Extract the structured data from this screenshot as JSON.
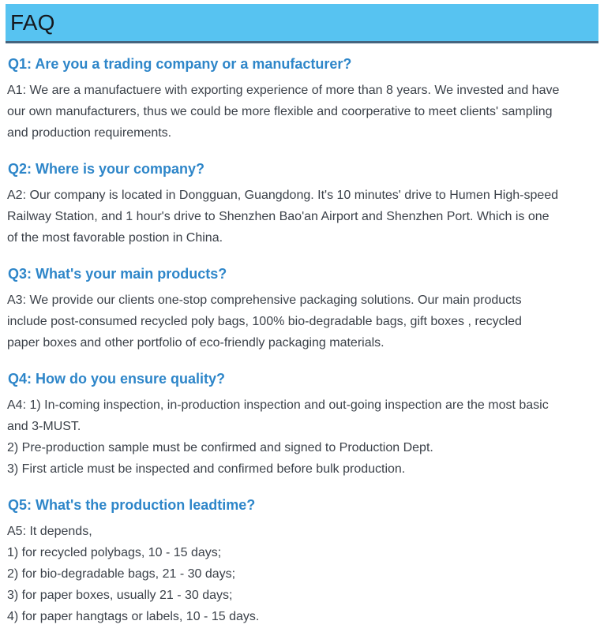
{
  "header": {
    "title": "FAQ"
  },
  "colors": {
    "header_bg": "#57c3f1",
    "header_border": "#45647e",
    "title_text": "#15191e",
    "question_text": "#2e86c9",
    "answer_text": "#3b4149",
    "page_bg": "#ffffff"
  },
  "faq": {
    "items": [
      {
        "question": "Q1: Are you a trading company or a manufacturer?",
        "answer": "A1: We are a manufactuere with exporting experience of more than 8 years. We invested and have\nour own manufacturers, thus we could be more flexible and coorperative to meet clients' sampling\nand production requirements."
      },
      {
        "question": "Q2: Where is your company?",
        "answer": "A2: Our company is located in Dongguan, Guangdong. It's 10 minutes' drive to Humen High-speed\nRailway Station, and 1 hour's drive to Shenzhen Bao'an Airport and Shenzhen Port. Which is one\nof the most favorable postion in China."
      },
      {
        "question": "Q3: What's your main products?",
        "answer": "A3: We provide our clients one-stop comprehensive packaging solutions. Our main products\ninclude post-consumed recycled poly bags, 100% bio-degradable bags, gift boxes , recycled\npaper boxes and other portfolio of eco-friendly packaging materials."
      },
      {
        "question": "Q4: How do you ensure quality?",
        "answer": "A4: 1) In-coming inspection, in-production inspection and out-going inspection are the most basic\nand 3-MUST.\n2) Pre-production sample must be confirmed and signed to Production Dept.\n3) First article must be inspected and confirmed before bulk production."
      },
      {
        "question": "Q5: What's the production leadtime?",
        "answer": "A5: It depends,\n1) for recycled polybags, 10 - 15 days;\n2) for bio-degradable bags, 21 - 30 days;\n3) for paper boxes, usually 21 - 30 days;\n4) for paper hangtags or labels, 10 - 15 days."
      }
    ]
  }
}
